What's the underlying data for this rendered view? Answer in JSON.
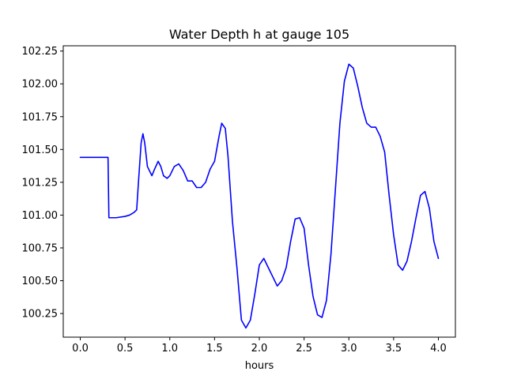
{
  "chart_data": {
    "type": "line",
    "title": "Water Depth h at gauge 105",
    "xlabel": "hours",
    "ylabel": "",
    "xlim": [
      -0.19,
      4.19
    ],
    "ylim": [
      100.07,
      102.29
    ],
    "xticks": [
      0.0,
      0.5,
      1.0,
      1.5,
      2.0,
      2.5,
      3.0,
      3.5,
      4.0
    ],
    "xtick_labels": [
      "0.0",
      "0.5",
      "1.0",
      "1.5",
      "2.0",
      "2.5",
      "3.0",
      "3.5",
      "4.0"
    ],
    "yticks": [
      100.25,
      100.5,
      100.75,
      101.0,
      101.25,
      101.5,
      101.75,
      102.0,
      102.25
    ],
    "ytick_labels": [
      "100.25",
      "100.50",
      "100.75",
      "101.00",
      "101.25",
      "101.50",
      "101.75",
      "102.00",
      "102.25"
    ],
    "grid": false,
    "series": [
      {
        "color": "#0000ff",
        "x": [
          0.0,
          0.1,
          0.2,
          0.3,
          0.31,
          0.32,
          0.4,
          0.5,
          0.55,
          0.6,
          0.63,
          0.65,
          0.68,
          0.7,
          0.72,
          0.75,
          0.8,
          0.83,
          0.87,
          0.9,
          0.93,
          0.97,
          1.0,
          1.05,
          1.1,
          1.15,
          1.2,
          1.25,
          1.3,
          1.35,
          1.4,
          1.45,
          1.5,
          1.55,
          1.58,
          1.62,
          1.65,
          1.7,
          1.75,
          1.8,
          1.85,
          1.9,
          1.95,
          2.0,
          2.05,
          2.1,
          2.15,
          2.2,
          2.25,
          2.3,
          2.35,
          2.4,
          2.45,
          2.5,
          2.55,
          2.6,
          2.65,
          2.7,
          2.75,
          2.8,
          2.85,
          2.9,
          2.95,
          3.0,
          3.05,
          3.1,
          3.15,
          3.2,
          3.25,
          3.3,
          3.35,
          3.4,
          3.45,
          3.5,
          3.55,
          3.6,
          3.65,
          3.7,
          3.75,
          3.8,
          3.85,
          3.9,
          3.95,
          4.0
        ],
        "y": [
          101.44,
          101.44,
          101.44,
          101.44,
          101.44,
          100.98,
          100.98,
          100.99,
          101.0,
          101.02,
          101.04,
          101.25,
          101.55,
          101.62,
          101.55,
          101.37,
          101.3,
          101.35,
          101.41,
          101.37,
          101.3,
          101.28,
          101.3,
          101.37,
          101.39,
          101.34,
          101.26,
          101.26,
          101.21,
          101.21,
          101.25,
          101.35,
          101.41,
          101.6,
          101.7,
          101.66,
          101.45,
          100.95,
          100.6,
          100.2,
          100.14,
          100.2,
          100.4,
          100.62,
          100.67,
          100.6,
          100.53,
          100.46,
          100.5,
          100.6,
          100.8,
          100.97,
          100.98,
          100.9,
          100.62,
          100.38,
          100.24,
          100.22,
          100.35,
          100.7,
          101.2,
          101.7,
          102.02,
          102.15,
          102.12,
          101.98,
          101.82,
          101.7,
          101.67,
          101.67,
          101.6,
          101.48,
          101.15,
          100.85,
          100.62,
          100.58,
          100.65,
          100.8,
          100.98,
          101.15,
          101.18,
          101.05,
          100.8,
          100.67
        ]
      }
    ]
  }
}
